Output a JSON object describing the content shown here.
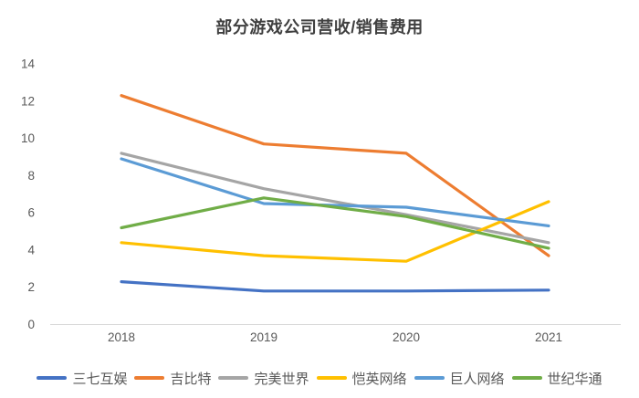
{
  "title": "部分游戏公司营收/销售费用",
  "chart_data": {
    "type": "line",
    "categories": [
      "2018",
      "2019",
      "2020",
      "2021"
    ],
    "series": [
      {
        "name": "三七互娱",
        "color": "#4472C4",
        "values": [
          2.3,
          1.8,
          1.8,
          1.85
        ]
      },
      {
        "name": "吉比特",
        "color": "#ED7D31",
        "values": [
          12.3,
          9.7,
          9.2,
          3.7
        ]
      },
      {
        "name": "完美世界",
        "color": "#A5A5A5",
        "values": [
          9.2,
          7.3,
          5.9,
          4.4
        ]
      },
      {
        "name": "恺英网络",
        "color": "#FFC000",
        "values": [
          4.4,
          3.7,
          3.4,
          6.6
        ]
      },
      {
        "name": "巨人网络",
        "color": "#5B9BD5",
        "values": [
          8.9,
          6.5,
          6.3,
          5.3
        ]
      },
      {
        "name": "世纪华通",
        "color": "#70AD47",
        "values": [
          5.2,
          6.8,
          5.8,
          4.1
        ]
      }
    ],
    "title": "部分游戏公司营收/销售费用",
    "xlabel": "",
    "ylabel": "",
    "ylim": [
      0,
      14
    ],
    "ytick_step": 2,
    "yticks": [
      "0",
      "2",
      "4",
      "6",
      "8",
      "10",
      "12",
      "14"
    ],
    "grid": false,
    "legend_position": "bottom"
  },
  "colors": {
    "title": "#404040",
    "axis_label": "#595959",
    "axis_line": "#D9D9D9",
    "background": "#FFFFFF"
  }
}
